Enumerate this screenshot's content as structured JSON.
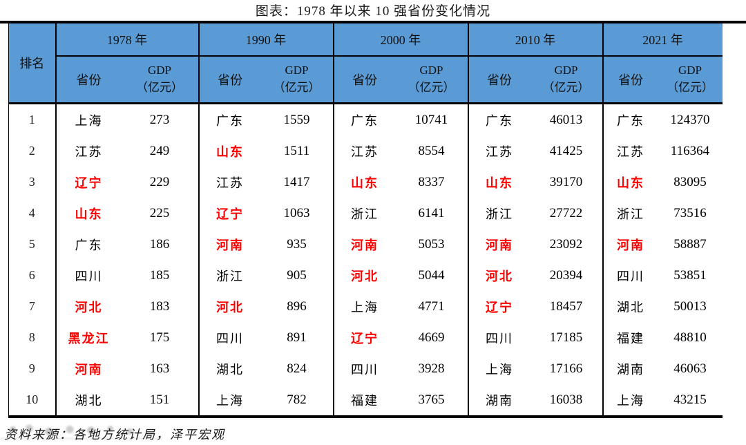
{
  "title": "图表：1978 年以来 10 强省份变化情况",
  "footer": {
    "source": "资料来源：各地方统计局，泽平宏观"
  },
  "colors": {
    "header_bg": "#5B9BD5",
    "highlight_red": "#FE0000",
    "border": "#000000",
    "text": "#000000"
  },
  "table_headers": {
    "rank": "排名",
    "province": "省份",
    "gdp_line1": "GDP",
    "gdp_line2": "（亿元）"
  },
  "chart_data": {
    "type": "table",
    "title": "图表：1978 年以来 10 强省份变化情况",
    "ranks": [
      "1",
      "2",
      "3",
      "4",
      "5",
      "6",
      "7",
      "8",
      "9",
      "10"
    ],
    "highlight_meaning": "red-colored province names",
    "groups": [
      {
        "year": "1978 年",
        "rows": [
          {
            "province": "上海",
            "gdp": "273",
            "red": false
          },
          {
            "province": "江苏",
            "gdp": "249",
            "red": false
          },
          {
            "province": "辽宁",
            "gdp": "229",
            "red": true
          },
          {
            "province": "山东",
            "gdp": "225",
            "red": true
          },
          {
            "province": "广东",
            "gdp": "186",
            "red": false
          },
          {
            "province": "四川",
            "gdp": "185",
            "red": false
          },
          {
            "province": "河北",
            "gdp": "183",
            "red": true
          },
          {
            "province": "黑龙江",
            "gdp": "175",
            "red": true
          },
          {
            "province": "河南",
            "gdp": "163",
            "red": true
          },
          {
            "province": "湖北",
            "gdp": "151",
            "red": false
          }
        ]
      },
      {
        "year": "1990 年",
        "rows": [
          {
            "province": "广东",
            "gdp": "1559",
            "red": false
          },
          {
            "province": "山东",
            "gdp": "1511",
            "red": true
          },
          {
            "province": "江苏",
            "gdp": "1417",
            "red": false
          },
          {
            "province": "辽宁",
            "gdp": "1063",
            "red": true
          },
          {
            "province": "河南",
            "gdp": "935",
            "red": true
          },
          {
            "province": "浙江",
            "gdp": "905",
            "red": false
          },
          {
            "province": "河北",
            "gdp": "896",
            "red": true
          },
          {
            "province": "四川",
            "gdp": "891",
            "red": false
          },
          {
            "province": "湖北",
            "gdp": "824",
            "red": false
          },
          {
            "province": "上海",
            "gdp": "782",
            "red": false
          }
        ]
      },
      {
        "year": "2000 年",
        "rows": [
          {
            "province": "广东",
            "gdp": "10741",
            "red": false
          },
          {
            "province": "江苏",
            "gdp": "8554",
            "red": false
          },
          {
            "province": "山东",
            "gdp": "8337",
            "red": true
          },
          {
            "province": "浙江",
            "gdp": "6141",
            "red": false
          },
          {
            "province": "河南",
            "gdp": "5053",
            "red": true
          },
          {
            "province": "河北",
            "gdp": "5044",
            "red": true
          },
          {
            "province": "上海",
            "gdp": "4771",
            "red": false
          },
          {
            "province": "辽宁",
            "gdp": "4669",
            "red": true
          },
          {
            "province": "四川",
            "gdp": "3928",
            "red": false
          },
          {
            "province": "福建",
            "gdp": "3765",
            "red": false
          }
        ]
      },
      {
        "year": "2010 年",
        "rows": [
          {
            "province": "广东",
            "gdp": "46013",
            "red": false
          },
          {
            "province": "江苏",
            "gdp": "41425",
            "red": false
          },
          {
            "province": "山东",
            "gdp": "39170",
            "red": true
          },
          {
            "province": "浙江",
            "gdp": "27722",
            "red": false
          },
          {
            "province": "河南",
            "gdp": "23092",
            "red": true
          },
          {
            "province": "河北",
            "gdp": "20394",
            "red": true
          },
          {
            "province": "辽宁",
            "gdp": "18457",
            "red": true
          },
          {
            "province": "四川",
            "gdp": "17185",
            "red": false
          },
          {
            "province": "上海",
            "gdp": "17166",
            "red": false
          },
          {
            "province": "湖南",
            "gdp": "16038",
            "red": false
          }
        ]
      },
      {
        "year": "2021 年",
        "rows": [
          {
            "province": "广东",
            "gdp": "124370",
            "red": false
          },
          {
            "province": "江苏",
            "gdp": "116364",
            "red": false
          },
          {
            "province": "山东",
            "gdp": "83095",
            "red": true
          },
          {
            "province": "浙江",
            "gdp": "73516",
            "red": false
          },
          {
            "province": "河南",
            "gdp": "58887",
            "red": true
          },
          {
            "province": "四川",
            "gdp": "53851",
            "red": false
          },
          {
            "province": "湖北",
            "gdp": "50013",
            "red": false
          },
          {
            "province": "福建",
            "gdp": "48810",
            "red": false
          },
          {
            "province": "湖南",
            "gdp": "46063",
            "red": false
          },
          {
            "province": "上海",
            "gdp": "43215",
            "red": false
          }
        ]
      }
    ]
  }
}
